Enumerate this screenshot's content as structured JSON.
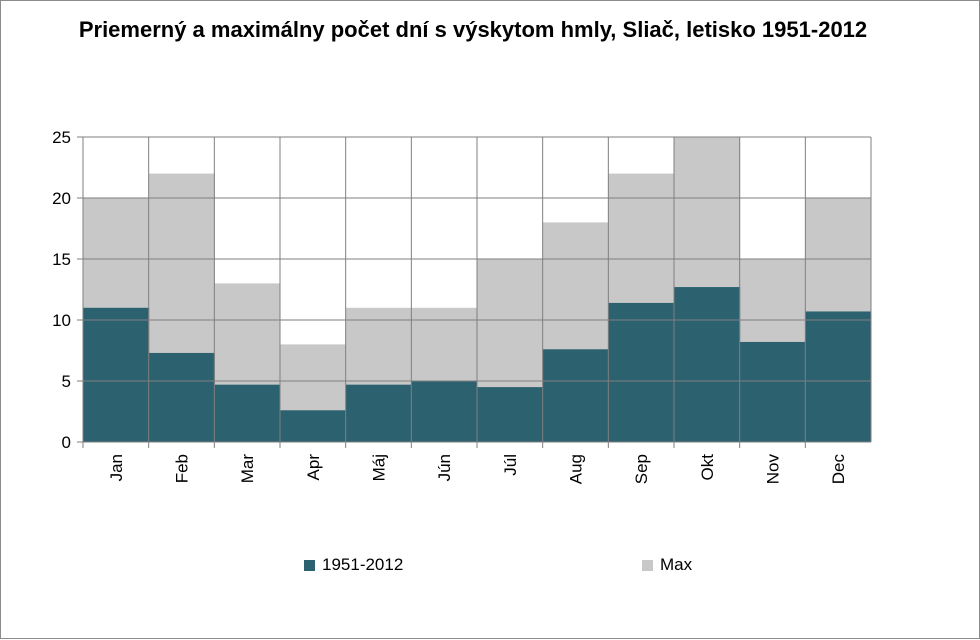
{
  "chart_data": {
    "type": "area",
    "title": "Priemerný a maximálny počet dní s výskytom hmly, Sliač, letisko 1951-2012",
    "categories": [
      "Jan",
      "Feb",
      "Mar",
      "Apr",
      "Máj",
      "Jún",
      "Júl",
      "Aug",
      "Sep",
      "Okt",
      "Nov",
      "Dec"
    ],
    "series": [
      {
        "name": "1951-2012",
        "color": "#2c6270",
        "values": [
          11.0,
          7.3,
          4.7,
          2.6,
          4.7,
          5.0,
          4.5,
          7.6,
          11.4,
          12.7,
          8.2,
          10.7
        ]
      },
      {
        "name": "Max",
        "color": "#c8c8c8",
        "values": [
          20,
          22,
          13,
          8,
          11,
          11,
          15,
          18,
          22,
          25,
          15,
          20
        ]
      }
    ],
    "ylim": [
      0,
      25
    ],
    "yticks": [
      0,
      5,
      10,
      15,
      20,
      25
    ],
    "grid": true,
    "legend_position": "bottom",
    "step_style": true
  }
}
